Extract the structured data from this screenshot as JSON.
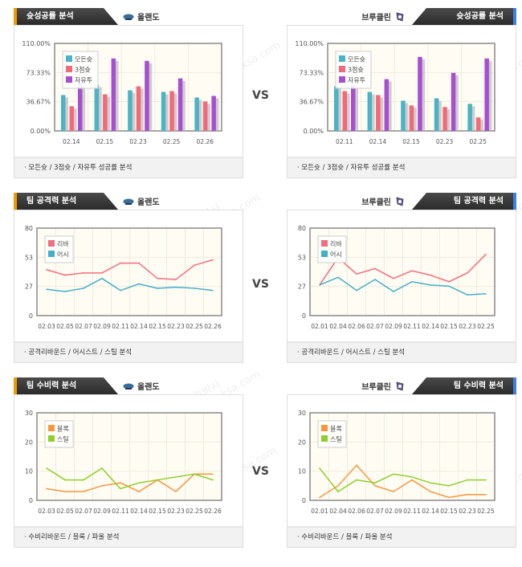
{
  "watermark": {
    "line1": "토토박사",
    "line2": "totobaksa.com"
  },
  "vs_label": "VS",
  "teams": {
    "home": "올랜도",
    "away": "브루클린"
  },
  "colors": {
    "teal": "#4ab3c6",
    "red": "#f2697a",
    "purple": "#a64fd2",
    "orange": "#f7963b",
    "green": "#8dcf2a",
    "rebound": "#f26d7d",
    "assist": "#43afc8",
    "accent_left": "#f29a00",
    "accent_right": "#3b82e0"
  },
  "sections": [
    {
      "title": "슛성공률 분석",
      "footer": "·  모든슛 / 3점슛 / 자유투 성공률 분석"
    },
    {
      "title": "팀 공격력 분석",
      "footer": "· 공격리바운드 / 어시스트 / 스틸 분석"
    },
    {
      "title": "팀 수비력 분석",
      "footer": "· 수비리바운드 / 블록 / 파울 분석"
    }
  ],
  "chart_data": [
    {
      "id": "shoot-home",
      "type": "bar",
      "team": "올랜도",
      "yticks": [
        "110.00%",
        "73.33%",
        "36.67%",
        "0.00%"
      ],
      "ylim": [
        0,
        110
      ],
      "categories": [
        "02.14",
        "02.15",
        "02.23",
        "02.25",
        "02.26"
      ],
      "series": [
        {
          "name": "모든슛",
          "color": "#4ab3c6",
          "values": [
            45,
            58,
            51,
            49,
            42
          ]
        },
        {
          "name": "3점슛",
          "color": "#f2697a",
          "values": [
            31,
            46,
            56,
            50,
            37
          ]
        },
        {
          "name": "자유투",
          "color": "#a64fd2",
          "values": [
            60,
            91,
            88,
            66,
            44
          ]
        }
      ]
    },
    {
      "id": "shoot-away",
      "type": "bar",
      "team": "브루클린",
      "yticks": [
        "110.00%",
        "73.33%",
        "36.67%",
        "0.00%"
      ],
      "ylim": [
        0,
        110
      ],
      "categories": [
        "02.11",
        "02.14",
        "02.15",
        "02.23",
        "02.25"
      ],
      "series": [
        {
          "name": "모든슛",
          "color": "#4ab3c6",
          "values": [
            56,
            49,
            38,
            41,
            34
          ]
        },
        {
          "name": "3점슛",
          "color": "#f2697a",
          "values": [
            50,
            45,
            32,
            30,
            17
          ]
        },
        {
          "name": "자유투",
          "color": "#a64fd2",
          "values": [
            58,
            65,
            93,
            73,
            91
          ]
        }
      ]
    },
    {
      "id": "offense-home",
      "type": "line",
      "team": "올랜도",
      "yticks": [
        "80",
        "53",
        "27",
        "0"
      ],
      "ylim": [
        0,
        80
      ],
      "categories": [
        "02.03",
        "02.05",
        "02.07",
        "02.09",
        "02.11",
        "02.14",
        "02.15",
        "02.23",
        "02.25",
        "02.26"
      ],
      "series": [
        {
          "name": "리바",
          "color": "#f26d7d",
          "values": [
            42,
            37,
            39,
            39,
            48,
            48,
            34,
            33,
            46,
            51
          ]
        },
        {
          "name": "어시",
          "color": "#43afc8",
          "values": [
            24,
            22,
            25,
            34,
            23,
            29,
            25,
            26,
            25,
            23
          ]
        }
      ]
    },
    {
      "id": "offense-away",
      "type": "line",
      "team": "브루클린",
      "yticks": [
        "80",
        "53",
        "27",
        "0"
      ],
      "ylim": [
        0,
        80
      ],
      "categories": [
        "02.01",
        "02.04",
        "02.06",
        "02.07",
        "02.09",
        "02.11",
        "02.14",
        "02.15",
        "02.23",
        "02.25"
      ],
      "series": [
        {
          "name": "리바",
          "color": "#f26d7d",
          "values": [
            28,
            53,
            38,
            43,
            34,
            41,
            37,
            31,
            39,
            56
          ]
        },
        {
          "name": "어시",
          "color": "#43afc8",
          "values": [
            28,
            35,
            23,
            33,
            22,
            31,
            28,
            27,
            19,
            20
          ]
        }
      ]
    },
    {
      "id": "defense-home",
      "type": "line",
      "team": "올랜도",
      "yticks": [
        "30",
        "20",
        "10",
        "0"
      ],
      "ylim": [
        0,
        30
      ],
      "categories": [
        "02.03",
        "02.05",
        "02.07",
        "02.09",
        "02.11",
        "02.14",
        "02.15",
        "02.23",
        "02.25",
        "02.26"
      ],
      "series": [
        {
          "name": "블록",
          "color": "#f7963b",
          "values": [
            4,
            3,
            3,
            5,
            6,
            3,
            7,
            3,
            9,
            9
          ]
        },
        {
          "name": "스틸",
          "color": "#8dcf2a",
          "values": [
            11,
            7,
            7,
            11,
            4,
            6,
            7,
            8,
            9,
            7
          ]
        }
      ]
    },
    {
      "id": "defense-away",
      "type": "line",
      "team": "브루클린",
      "yticks": [
        "30",
        "20",
        "10",
        "0"
      ],
      "ylim": [
        0,
        30
      ],
      "categories": [
        "02.01",
        "02.04",
        "02.06",
        "02.07",
        "02.09",
        "02.11",
        "02.14",
        "02.15",
        "02.23",
        "02.25"
      ],
      "series": [
        {
          "name": "블록",
          "color": "#f7963b",
          "values": [
            1,
            5,
            12,
            5,
            3,
            7,
            3,
            1,
            2,
            2
          ]
        },
        {
          "name": "스틸",
          "color": "#8dcf2a",
          "values": [
            11,
            3,
            7,
            6,
            9,
            8,
            6,
            5,
            7,
            7
          ]
        }
      ]
    }
  ]
}
